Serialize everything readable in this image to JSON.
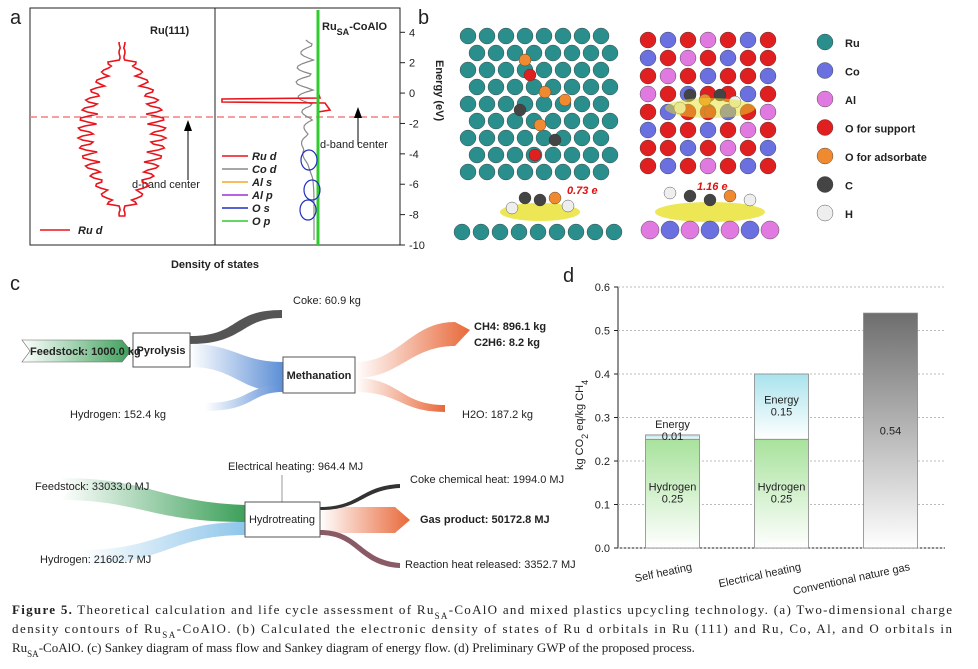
{
  "panel_a": {
    "label": "a",
    "left_title": "Ru(111)",
    "right_title": [
      "Ru",
      "SA",
      "-CoAlO"
    ],
    "axis_label": "Energy (eV)",
    "ylim": [
      -10,
      5.6
    ],
    "yticks": [
      4,
      2,
      0,
      -2,
      -4,
      -6,
      -8,
      -10
    ],
    "x_axis_label": "Density of states",
    "left_annotation": "d-band center",
    "right_annotation": "d-band center",
    "left_legend": {
      "name": "Ru d",
      "color": "#e8141b"
    },
    "right_legend": [
      {
        "name": "Ru d",
        "color": "#e8141b"
      },
      {
        "name": "Co d",
        "color": "#888888"
      },
      {
        "name": "Al s",
        "color": "#f5a623"
      },
      {
        "name": "Al p",
        "color": "#9b30d9"
      },
      {
        "name": "O s",
        "color": "#1f2fbf"
      },
      {
        "name": "O p",
        "color": "#2ecc2e"
      }
    ]
  },
  "panel_b": {
    "label": "b",
    "charges": [
      "0.73 e",
      "1.16 e"
    ],
    "legend": [
      {
        "name": "Ru",
        "color": "#2a8f8c"
      },
      {
        "name": "Co",
        "color": "#6a70e0"
      },
      {
        "name": "Al",
        "color": "#e07ae0"
      },
      {
        "name": "O for support",
        "color": "#e02020"
      },
      {
        "name": "O for adsorbate",
        "color": "#f08a30"
      },
      {
        "name": "C",
        "color": "#444444"
      },
      {
        "name": "H",
        "color": "#eeeeee"
      }
    ]
  },
  "panel_c": {
    "label": "c",
    "mass": {
      "feedstock": "Feedstock: 1000.0 kg",
      "pyrolysis": "Pyrolysis",
      "coke": "Coke: 60.9 kg",
      "methanation": "Methanation",
      "hydrogen": "Hydrogen: 152.4 kg",
      "ch4": "CH4: 896.1 kg",
      "c2h6": "C2H6: 8.2 kg",
      "h2o": "H2O: 187.2 kg"
    },
    "energy": {
      "feedstock": "Feedstock: 33033.0 MJ",
      "hydrogen": "Hydrogen: 21602.7 MJ",
      "electrical": "Electrical heating: 964.4 MJ",
      "hydrotreating": "Hydrotreating",
      "coke": "Coke chemical heat: 1994.0 MJ",
      "gas": "Gas product: 50172.8 MJ",
      "reaction": "Reaction heat released: 3352.7 MJ"
    }
  },
  "chart_data": {
    "type": "bar",
    "label": "d",
    "stacked": true,
    "categories": [
      "Self heating",
      "Electrical heating",
      "Conventional nature gas"
    ],
    "series": [
      {
        "name": "Hydrogen",
        "color": "#a8e29c",
        "values": [
          0.25,
          0.25,
          null
        ]
      },
      {
        "name": "Energy",
        "color": "#a9e3ec",
        "values": [
          0.01,
          0.15,
          null
        ]
      },
      {
        "color": "#6e6e6e",
        "values": [
          null,
          null,
          0.54
        ]
      }
    ],
    "ylim": [
      0,
      0.6
    ],
    "yticks": [
      {
        "value": 0,
        "label": "0.0"
      },
      0.1,
      0.2,
      0.3,
      0.4,
      0.5,
      0.6
    ],
    "y_label": [
      "kg CO",
      "2",
      " eq/kg CH",
      "4"
    ],
    "grid": true
  },
  "caption": {
    "label": "Figure 5.",
    "lines": [
      [
        "Theoretical calculation and life cycle assessment of Ru",
        "SA",
        "-CoAlO and mixed plastics upcycling technology. (a) Two-dimensional charge"
      ],
      [
        "density contours of Ru",
        "SA",
        "-CoAlO. (b) Calculated the electronic density of states of Ru d orbitals in Ru (111) and Ru, Co, Al, and O orbitals in"
      ],
      [
        "Ru",
        "SA",
        "-CoAlO. (c) Sankey diagram of mass flow and Sankey diagram of energy flow. (d) Preliminary GWP of the proposed process."
      ]
    ]
  }
}
